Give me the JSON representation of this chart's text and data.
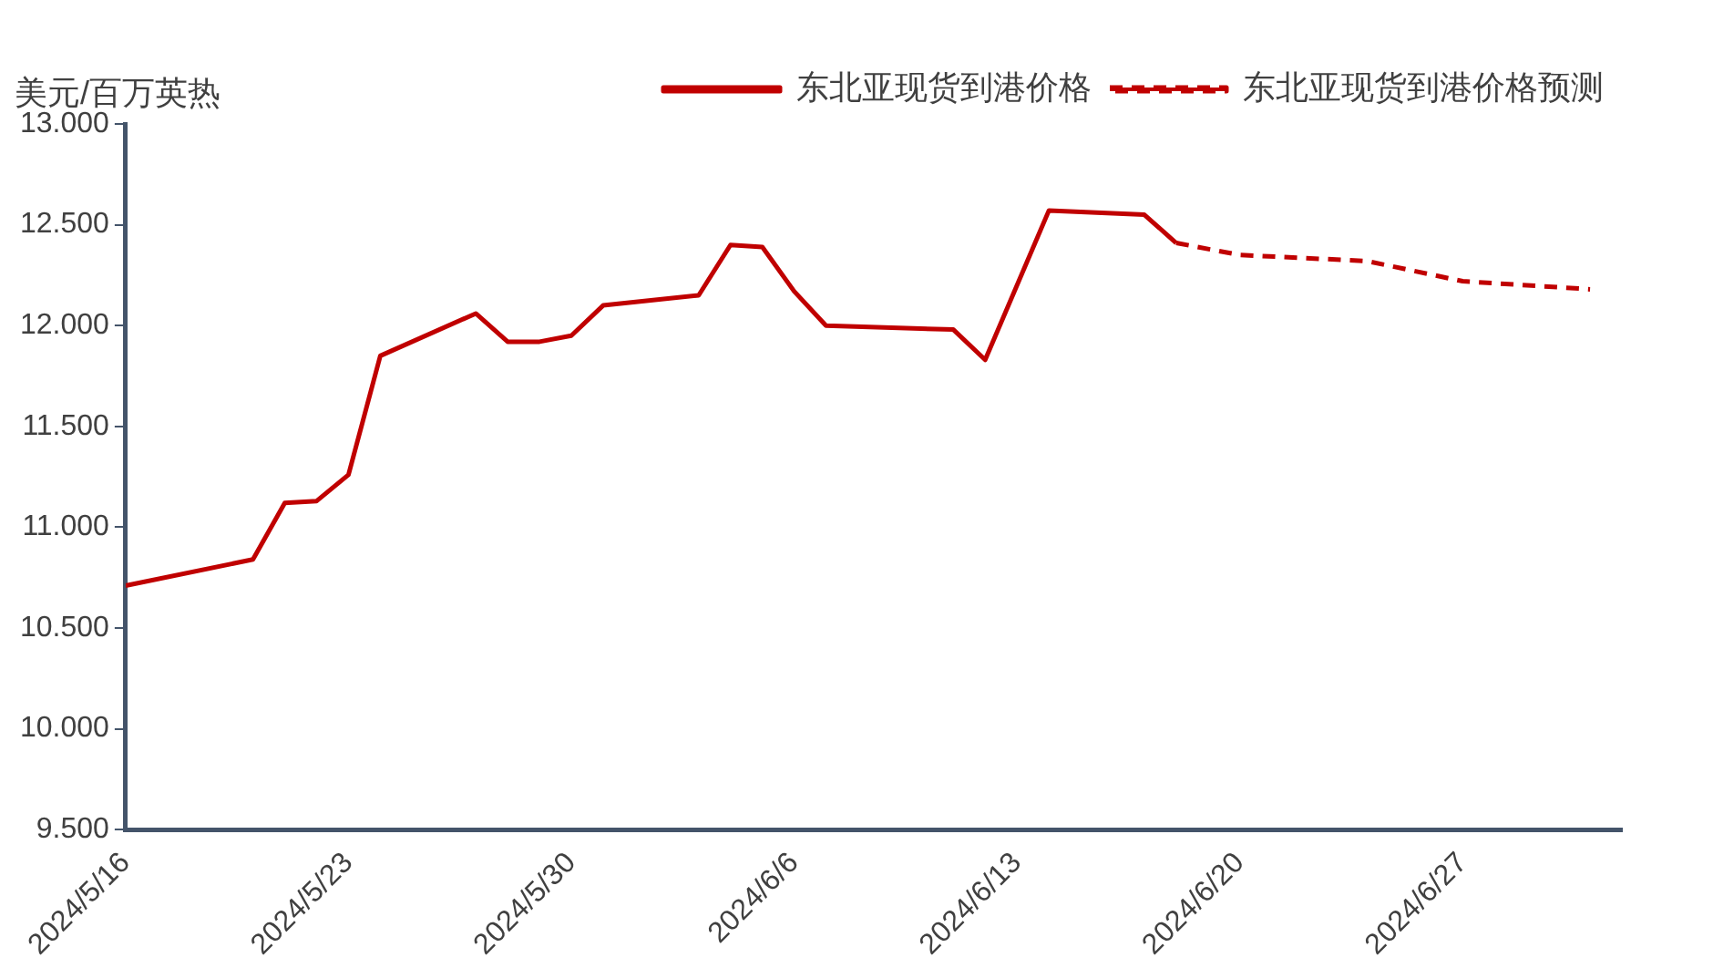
{
  "chart_data": {
    "type": "line",
    "ylabel": "美元/百万英热",
    "xlim": [
      "2024-05-16",
      "2024-07-02"
    ],
    "xticks": [
      {
        "value": "2024-05-16",
        "label": "2024/5/16"
      },
      {
        "value": "2024-05-23",
        "label": "2024/5/23"
      },
      {
        "value": "2024-05-30",
        "label": "2024/5/30"
      },
      {
        "value": "2024-06-06",
        "label": "2024/6/6"
      },
      {
        "value": "2024-06-13",
        "label": "2024/6/13"
      },
      {
        "value": "2024-06-20",
        "label": "2024/6/20"
      },
      {
        "value": "2024-06-27",
        "label": "2024/6/27"
      }
    ],
    "ylim": [
      9.5,
      13
    ],
    "yticks": [
      {
        "value": 9.5,
        "label": "9.500"
      },
      {
        "value": 10,
        "label": "10.000"
      },
      {
        "value": 10.5,
        "label": "10.500"
      },
      {
        "value": 11,
        "label": "11.000"
      },
      {
        "value": 11.5,
        "label": "11.500"
      },
      {
        "value": 12,
        "label": "12.000"
      },
      {
        "value": 12.5,
        "label": "12.500"
      },
      {
        "value": 13,
        "label": "13.000"
      }
    ],
    "grid": false,
    "legend": "top",
    "marker": "none",
    "series": [
      {
        "name": "东北亚现货到港价格",
        "color": "#c00000",
        "line_style": "solid",
        "x": [
          "2024-05-16",
          "2024-05-20",
          "2024-05-21",
          "2024-05-22",
          "2024-05-23",
          "2024-05-24",
          "2024-05-27",
          "2024-05-28",
          "2024-05-29",
          "2024-05-30",
          "2024-05-31",
          "2024-06-03",
          "2024-06-04",
          "2024-06-05",
          "2024-06-06",
          "2024-06-07",
          "2024-06-11",
          "2024-06-12",
          "2024-06-14",
          "2024-06-17",
          "2024-06-18"
        ],
        "values": [
          10.71,
          10.84,
          11.12,
          11.13,
          11.26,
          11.85,
          12.06,
          11.92,
          11.92,
          11.95,
          12.1,
          12.15,
          12.4,
          12.39,
          12.17,
          12.0,
          11.98,
          11.83,
          12.57,
          12.55,
          12.41
        ]
      },
      {
        "name": "东北亚现货到港价格预测",
        "color": "#c00000",
        "line_style": "dashed",
        "x": [
          "2024-06-18",
          "2024-06-20",
          "2024-06-24",
          "2024-06-27",
          "2024-07-01"
        ],
        "values": [
          12.41,
          12.35,
          12.32,
          12.22,
          12.18
        ]
      }
    ]
  }
}
